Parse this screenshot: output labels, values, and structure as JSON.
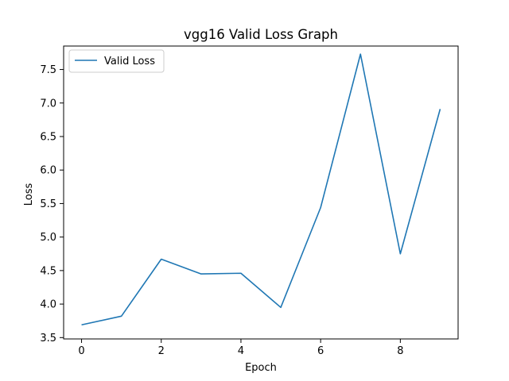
{
  "chart_data": {
    "type": "line",
    "title": "vgg16 Valid Loss Graph",
    "xlabel": "Epoch",
    "ylabel": "Loss",
    "x": [
      0,
      1,
      2,
      3,
      4,
      5,
      6,
      7,
      8,
      9
    ],
    "xlim": [
      -0.45,
      9.45
    ],
    "ylim": [
      3.48,
      7.85
    ],
    "xticks": [
      0,
      2,
      4,
      6,
      8
    ],
    "xtick_labels": [
      "0",
      "2",
      "4",
      "6",
      "8"
    ],
    "yticks": [
      3.5,
      4.0,
      4.5,
      5.0,
      5.5,
      6.0,
      6.5,
      7.0,
      7.5
    ],
    "ytick_labels": [
      "3.5",
      "4.0",
      "4.5",
      "5.0",
      "5.5",
      "6.0",
      "6.5",
      "7.0",
      "7.5"
    ],
    "grid": false,
    "legend_position": "top-left",
    "series": [
      {
        "name": "Valid Loss",
        "color": "#1f77b4",
        "values": [
          3.69,
          3.82,
          4.67,
          4.45,
          4.46,
          3.95,
          5.44,
          7.73,
          4.75,
          6.91
        ]
      }
    ]
  }
}
